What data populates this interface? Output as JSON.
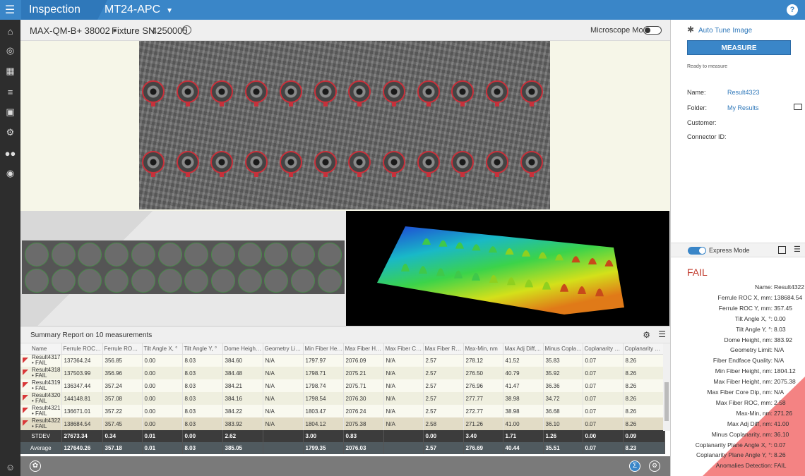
{
  "header": {
    "menu_icon": "hamburger-icon",
    "app_title": "Inspection",
    "connector_type": "MT24-APC",
    "help_icon": "help-icon"
  },
  "nav": {
    "items": [
      "home-icon",
      "target-icon",
      "map-icon",
      "sliders-icon",
      "camera-icon",
      "gears-icon",
      "users-icon",
      "lifebuoy-icon"
    ],
    "bottom": "user-icon"
  },
  "toolbar": {
    "model": "MAX-QM-B+ 38002",
    "fixture_label": "Fixture SN",
    "fixture_value": "4250005",
    "microscope_label": "Microscope Mode"
  },
  "summary": {
    "title": "Summary Report on 10 measurements",
    "columns": [
      "Name",
      "Ferrule ROC X,...",
      "Ferrule ROC Y,...",
      "Tilt Angle X, °",
      "Tilt Angle Y, °",
      "Dome Height,...",
      "Geometry Limit",
      "Min Fiber Hei...",
      "Max Fiber Hei...",
      "Max Fiber Cor...",
      "Max Fiber RO...",
      "Max-Min, nm",
      "Max Adj Diff,...",
      "Minus Coplan...",
      "Coplanarity Pl...",
      "Coplanarity Pl..."
    ],
    "rows": [
      [
        "Result4317 • FAIL",
        "137364.24",
        "356.85",
        "0.00",
        "8.03",
        "384.60",
        "N/A",
        "1797.97",
        "2076.09",
        "N/A",
        "2.57",
        "278.12",
        "41.52",
        "35.83",
        "0.07",
        "8.26"
      ],
      [
        "Result4318 • FAIL",
        "137503.99",
        "356.96",
        "0.00",
        "8.03",
        "384.48",
        "N/A",
        "1798.71",
        "2075.21",
        "N/A",
        "2.57",
        "276.50",
        "40.79",
        "35.92",
        "0.07",
        "8.26"
      ],
      [
        "Result4319 • FAIL",
        "136347.44",
        "357.24",
        "0.00",
        "8.03",
        "384.21",
        "N/A",
        "1798.74",
        "2075.71",
        "N/A",
        "2.57",
        "276.96",
        "41.47",
        "36.36",
        "0.07",
        "8.26"
      ],
      [
        "Result4320 • FAIL",
        "144148.81",
        "357.08",
        "0.00",
        "8.03",
        "384.16",
        "N/A",
        "1798.54",
        "2076.30",
        "N/A",
        "2.57",
        "277.77",
        "38.98",
        "34.72",
        "0.07",
        "8.26"
      ],
      [
        "Result4321 • FAIL",
        "136671.01",
        "357.22",
        "0.00",
        "8.03",
        "384.22",
        "N/A",
        "1803.47",
        "2076.24",
        "N/A",
        "2.57",
        "272.77",
        "38.98",
        "36.68",
        "0.07",
        "8.26"
      ],
      [
        "Result4322 • FAIL",
        "138684.54",
        "357.45",
        "0.00",
        "8.03",
        "383.92",
        "N/A",
        "1804.12",
        "2075.38",
        "N/A",
        "2.58",
        "271.26",
        "41.00",
        "36.10",
        "0.07",
        "8.26"
      ]
    ],
    "stdev": [
      "STDEV",
      "27673.34",
      "0.34",
      "0.01",
      "0.00",
      "2.62",
      "",
      "3.00",
      "0.83",
      "",
      "0.00",
      "3.40",
      "1.71",
      "1.26",
      "0.00",
      "0.09"
    ],
    "average": [
      "Average",
      "127640.26",
      "357.18",
      "0.01",
      "8.03",
      "385.05",
      "",
      "1799.35",
      "2076.03",
      "",
      "2.57",
      "276.69",
      "40.44",
      "35.51",
      "0.07",
      "8.23"
    ]
  },
  "right": {
    "auto_tune": "Auto Tune Image",
    "measure": "MEASURE",
    "ready": "Ready to measure",
    "name_label": "Name:",
    "name_value": "Result4323",
    "folder_label": "Folder:",
    "folder_value": "My Results",
    "customer_label": "Customer:",
    "connector_label": "Connector ID:",
    "express": "Express Mode",
    "status": "FAIL",
    "results": [
      [
        "Name:",
        "Result4322"
      ],
      [
        "Ferrule ROC X, mm:",
        "138684.54"
      ],
      [
        "Ferrule ROC Y, mm:",
        "357.45"
      ],
      [
        "Tilt Angle X, °:",
        "0.00"
      ],
      [
        "Tilt Angle Y, °:",
        "8.03"
      ],
      [
        "Dome Height, nm:",
        "383.92"
      ],
      [
        "Geometry Limit:",
        "N/A"
      ],
      [
        "Fiber Endface Quality:",
        "N/A"
      ],
      [
        "Min Fiber Height, nm:",
        "1804.12"
      ],
      [
        "Max Fiber Height, nm:",
        "2075.38"
      ],
      [
        "Max Fiber Core Dip, nm:",
        "N/A"
      ],
      [
        "Max Fiber ROC, mm:",
        "2.58"
      ],
      [
        "Max-Min, nm:",
        "271.26"
      ],
      [
        "Max Adj Diff, nm:",
        "41.00"
      ],
      [
        "Minus Coplanarity, nm:",
        "36.10"
      ],
      [
        "Coplanarity Plane Angle X, °:",
        "0.07"
      ],
      [
        "Coplanarity Plane Angle Y, °:",
        "8.26"
      ],
      [
        "Anomalies Detection:",
        "FAIL"
      ]
    ]
  },
  "colors": {
    "accent": "#3a86c8",
    "fail": "#c0392b",
    "nav": "#2d2d2d"
  }
}
